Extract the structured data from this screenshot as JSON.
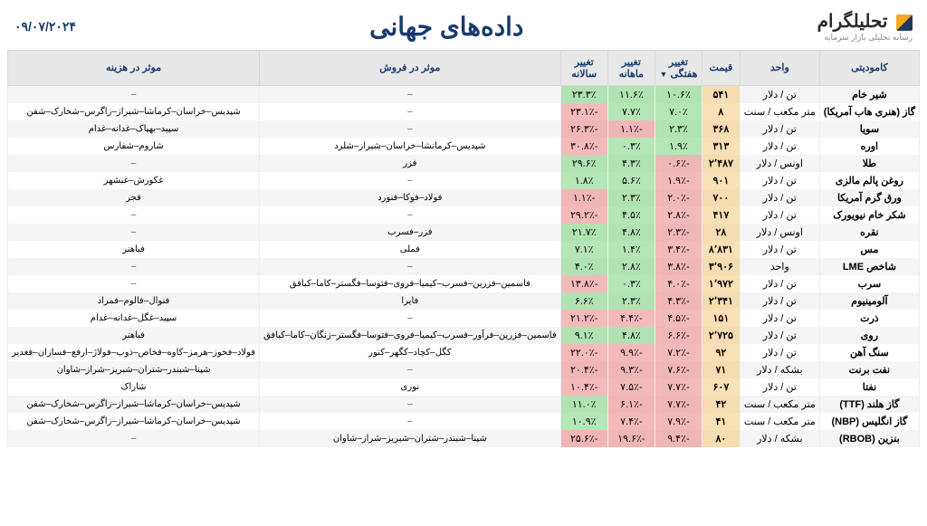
{
  "header": {
    "logo_text": "تحلیلگرام",
    "logo_sub": "رسانه تحلیلی بازار سرمایه",
    "title": "داده‌های جهانی",
    "date": "۰۹/۰۷/۲۰۲۴"
  },
  "columns": {
    "commodity": "کامودیتی",
    "unit": "واحد",
    "price": "قیمت",
    "weekly": "تغییر هفتگی",
    "monthly": "تغییر ماهانه",
    "yearly": "تغییر سالانه",
    "sales": "موثر در فروش",
    "cost": "موثر در هزینه"
  },
  "rows": [
    {
      "commodity": "شیر خام",
      "unit": "تن / دلار",
      "price": "۵۴۱",
      "weekly": "۱۰.۶٪",
      "w_sign": 1,
      "monthly": "۱۱.۶٪",
      "m_sign": 1,
      "yearly": "۲۳.۳٪",
      "y_sign": 1,
      "sales": "–",
      "cost": "–"
    },
    {
      "commodity": "گاز (هنری هاب آمریکا)",
      "unit": "متر مکعب / سنت",
      "price": "۸",
      "weekly": "۷.۰٪",
      "w_sign": 1,
      "monthly": "۷.۷٪",
      "m_sign": 1,
      "yearly": "-۲۳.۱٪",
      "y_sign": -1,
      "sales": "–",
      "cost": "شپدیس–خراسان–کرماشا–شیراز–زاگرس–شخارک–شفن"
    },
    {
      "commodity": "سویا",
      "unit": "تن / دلار",
      "price": "۳۶۸",
      "weekly": "۲.۳٪",
      "w_sign": 1,
      "monthly": "-۱.۱٪",
      "m_sign": -1,
      "yearly": "-۲۶.۳٪",
      "y_sign": -1,
      "sales": "–",
      "cost": "سپید–بهپاک–غدانه–غدام"
    },
    {
      "commodity": "اوره",
      "unit": "تن / دلار",
      "price": "۳۱۳",
      "weekly": "۱.۹٪",
      "w_sign": 1,
      "monthly": "۰.۳٪",
      "m_sign": 1,
      "yearly": "-۳۰.۸٪",
      "y_sign": -1,
      "sales": "شپدیس–کرمانشا–خراسان–شیراز–شلرد",
      "cost": "شاروم–شفارس"
    },
    {
      "commodity": "طلا",
      "unit": "اونس / دلار",
      "price": "۲٬۴۸۷",
      "weekly": "-۰.۶٪",
      "w_sign": -1,
      "monthly": "۴.۳٪",
      "m_sign": 1,
      "yearly": "۲۹.۶٪",
      "y_sign": 1,
      "sales": "فزر",
      "cost": "–"
    },
    {
      "commodity": "روغن پالم مالزی",
      "unit": "تن / دلار",
      "price": "۹۰۱",
      "weekly": "-۱.۹٪",
      "w_sign": -1,
      "monthly": "۵.۶٪",
      "m_sign": 1,
      "yearly": "۱.۸٪",
      "y_sign": 1,
      "sales": "–",
      "cost": "غکورش–غبشهر"
    },
    {
      "commodity": "ورق گرم آمریکا",
      "unit": "تن / دلار",
      "price": "۷۰۰",
      "weekly": "-۲.۰٪",
      "w_sign": -1,
      "monthly": "۲.۳٪",
      "m_sign": 1,
      "yearly": "-۱.۱٪",
      "y_sign": -1,
      "sales": "فولاد–فوکا–فنورد",
      "cost": "فجر"
    },
    {
      "commodity": "شکر خام نیویورک",
      "unit": "تن / دلار",
      "price": "۴۱۷",
      "weekly": "-۲.۸٪",
      "w_sign": -1,
      "monthly": "۴.۵٪",
      "m_sign": 1,
      "yearly": "-۲۹.۲٪",
      "y_sign": -1,
      "sales": "–",
      "cost": "–"
    },
    {
      "commodity": "نقره",
      "unit": "اونس / دلار",
      "price": "۲۸",
      "weekly": "-۲.۳٪",
      "w_sign": -1,
      "monthly": "۴.۸٪",
      "m_sign": 1,
      "yearly": "۲۱.۷٪",
      "y_sign": 1,
      "sales": "فزر–فسرب",
      "cost": "–"
    },
    {
      "commodity": "مس",
      "unit": "تن / دلار",
      "price": "۸٬۸۳۱",
      "weekly": "-۳.۴٪",
      "w_sign": -1,
      "monthly": "۱.۴٪",
      "m_sign": 1,
      "yearly": "۷.۱٪",
      "y_sign": 1,
      "sales": "فملی",
      "cost": "فباهنر"
    },
    {
      "commodity": "شاخص LME",
      "unit": "واحد",
      "price": "۳٬۹۰۶",
      "weekly": "-۳.۸٪",
      "w_sign": -1,
      "monthly": "۲.۸٪",
      "m_sign": 1,
      "yearly": "۴.۰٪",
      "y_sign": 1,
      "sales": "–",
      "cost": "–"
    },
    {
      "commodity": "سرب",
      "unit": "تن / دلار",
      "price": "۱٬۹۷۲",
      "weekly": "-۴.۰٪",
      "w_sign": -1,
      "monthly": "۰.۳٪",
      "m_sign": 1,
      "yearly": "-۱۳.۸٪",
      "y_sign": -1,
      "sales": "فاسمین–فزرین–فسرب–کیمیا–فروی–فتوسا–فگستر–کاما–کبافق",
      "cost": "–"
    },
    {
      "commodity": "آلومینیوم",
      "unit": "تن / دلار",
      "price": "۲٬۳۴۱",
      "weekly": "-۴.۳٪",
      "w_sign": -1,
      "monthly": "۲.۳٪",
      "m_sign": 1,
      "yearly": "۶.۶٪",
      "y_sign": 1,
      "sales": "فایرا",
      "cost": "فنوال–فالوم–فمراد"
    },
    {
      "commodity": "ذرت",
      "unit": "تن / دلار",
      "price": "۱۵۱",
      "weekly": "-۴.۵٪",
      "w_sign": -1,
      "monthly": "-۴.۴٪",
      "m_sign": -1,
      "yearly": "-۲۱.۲٪",
      "y_sign": -1,
      "sales": "–",
      "cost": "سپید–غگل–غدانه–غدام"
    },
    {
      "commodity": "روی",
      "unit": "تن / دلار",
      "price": "۲٬۷۲۵",
      "weekly": "-۶.۶٪",
      "w_sign": -1,
      "monthly": "۴.۸٪",
      "m_sign": 1,
      "yearly": "۹.۱٪",
      "y_sign": 1,
      "sales": "فاسمین–فزرین–فرآور–فسرب–کیمیا–فروی–فتوسا–فگستر–زنگان–کاما–کبافق",
      "cost": "فباهنر"
    },
    {
      "commodity": "سنگ آهن",
      "unit": "تن / دلار",
      "price": "۹۲",
      "weekly": "-۷.۲٪",
      "w_sign": -1,
      "monthly": "-۹.۹٪",
      "m_sign": -1,
      "yearly": "-۲۲.۰٪",
      "y_sign": -1,
      "sales": "کگل–کچاد–کگهر–کنور",
      "cost": "فولاد–فخوز–هرمز–کاوه–فخاص–ذوب–فولاژ–ارفع–فسازان–فغدیر"
    },
    {
      "commodity": "نفت برنت",
      "unit": "بشکه / دلار",
      "price": "۷۱",
      "weekly": "-۷.۶٪",
      "w_sign": -1,
      "monthly": "-۹.۳٪",
      "m_sign": -1,
      "yearly": "-۲۰.۴٪",
      "y_sign": -1,
      "sales": "–",
      "cost": "شپنا–شبندر–شتران–شبریز–شراز–شاوان"
    },
    {
      "commodity": "نفتا",
      "unit": "تن / دلار",
      "price": "۶۰۷",
      "weekly": "-۷.۷٪",
      "w_sign": -1,
      "monthly": "-۷.۵٪",
      "m_sign": -1,
      "yearly": "-۱۰.۴٪",
      "y_sign": -1,
      "sales": "نوری",
      "cost": "شاراک"
    },
    {
      "commodity": "گاز هلند (TTF)",
      "unit": "متر مکعب / سنت",
      "price": "۴۲",
      "weekly": "-۷.۷٪",
      "w_sign": -1,
      "monthly": "-۶.۱٪",
      "m_sign": -1,
      "yearly": "۱۱.۰٪",
      "y_sign": 1,
      "sales": "–",
      "cost": "شپدیس–خراسان–کرماشا–شیراز–زاگرس–شخارک–شفن"
    },
    {
      "commodity": "گاز انگلیس (NBP)",
      "unit": "متر مکعب / سنت",
      "price": "۴۱",
      "weekly": "-۷.۹٪",
      "w_sign": -1,
      "monthly": "-۷.۴٪",
      "m_sign": -1,
      "yearly": "۱۰.۹٪",
      "y_sign": 1,
      "sales": "–",
      "cost": "شپدیس–خراسان–کرماشا–شیراز–زاگرس–شخارک–شفن"
    },
    {
      "commodity": "بنزین (RBOB)",
      "unit": "بشکه / دلار",
      "price": "۸۰",
      "weekly": "-۹.۴٪",
      "w_sign": -1,
      "monthly": "-۱۹.۶٪",
      "m_sign": -1,
      "yearly": "-۲۵.۶٪",
      "y_sign": -1,
      "sales": "شپنا–شبندر–شتران–شبریز–شراز–شاوان",
      "cost": "–"
    }
  ],
  "colors": {
    "header_bg": "#e8e8e8",
    "header_text": "#1a3a6e",
    "row_odd": "#f5f5f5",
    "row_even": "#ffffff",
    "price_bg": "#f5c878",
    "pos_bg": "#78d278",
    "neg_bg": "#eb8282"
  }
}
